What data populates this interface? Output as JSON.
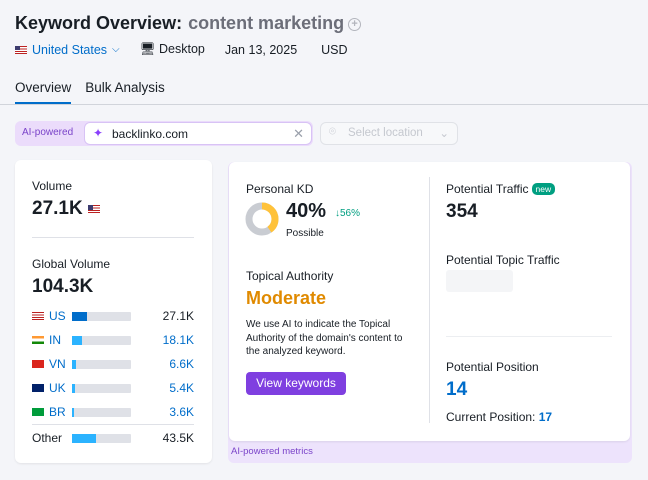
{
  "header": {
    "title": "Keyword Overview:",
    "keyword": "content marketing",
    "country": "United States",
    "device": "Desktop",
    "date": "Jan 13, 2025",
    "currency": "USD"
  },
  "tabs": [
    {
      "label": "Overview",
      "active": true
    },
    {
      "label": "Bulk Analysis",
      "active": false
    }
  ],
  "ai_search": {
    "badge": "AI-powered",
    "value": "backlinko.com",
    "location_placeholder": "Select location"
  },
  "volume": {
    "label": "Volume",
    "value": "27.1K",
    "global_label": "Global Volume",
    "global_value": "104.3K",
    "countries": [
      {
        "code": "US",
        "value": "27.1K",
        "fill": 0.26,
        "bar_color": "#006dca"
      },
      {
        "code": "IN",
        "value": "18.1K",
        "fill": 0.17,
        "bar_color": "#2bb3ff"
      },
      {
        "code": "VN",
        "value": "6.6K",
        "fill": 0.06,
        "bar_color": "#2bb3ff"
      },
      {
        "code": "UK",
        "value": "5.4K",
        "fill": 0.05,
        "bar_color": "#2bb3ff"
      },
      {
        "code": "BR",
        "value": "3.6K",
        "fill": 0.03,
        "bar_color": "#2bb3ff"
      }
    ],
    "other": {
      "label": "Other",
      "value": "43.5K",
      "fill": 0.41
    }
  },
  "metrics": {
    "kd_label": "Personal KD",
    "kd_value": "40%",
    "kd_change": "↓56%",
    "kd_text": "Possible",
    "kd_percent": 40,
    "ta_label": "Topical Authority",
    "ta_value": "Moderate",
    "ta_desc": "We use AI to indicate the Topical Authority of the domain's content to the analyzed keyword.",
    "view_button": "View keywords",
    "traffic_label": "Potential Traffic",
    "traffic_badge": "new",
    "traffic_value": "354",
    "topic_traffic_label": "Potential Topic Traffic",
    "position_label": "Potential Position",
    "position_value": "14",
    "current_label": "Current Position:",
    "current_value": "17",
    "footer": "AI-powered metrics"
  },
  "colors": {
    "accent": "#006dca",
    "purple": "#7f3fe0",
    "moderate": "#e08a00",
    "kd": "#ffc23a"
  }
}
